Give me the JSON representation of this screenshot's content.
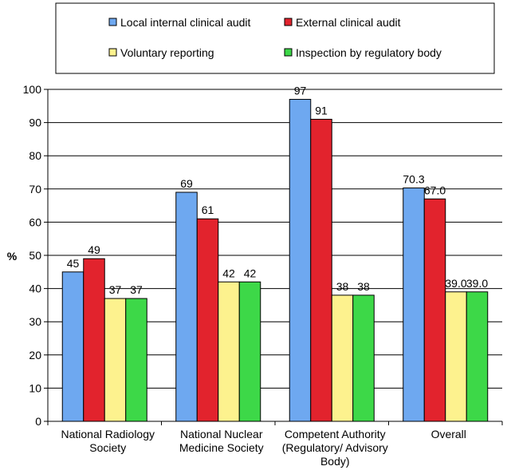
{
  "chart_data": {
    "type": "bar",
    "title": "",
    "xlabel": "",
    "ylabel": "%",
    "ylim": [
      0,
      100
    ],
    "yticks": [
      0,
      10,
      20,
      30,
      40,
      50,
      60,
      70,
      80,
      90,
      100
    ],
    "grid": true,
    "legend_position": "top",
    "categories": [
      [
        "National Radiology",
        "Society"
      ],
      [
        "National Nuclear",
        "Medicine Society"
      ],
      [
        "Competent Authority",
        "(Regulatory/ Advisory",
        "Body)"
      ],
      [
        "Overall"
      ]
    ],
    "series": [
      {
        "name": "Local internal clinical audit",
        "color": "#6ea8f0",
        "values": [
          45,
          69,
          97,
          70.3
        ],
        "labels": [
          "45",
          "69",
          "97",
          "70.3"
        ]
      },
      {
        "name": "External clinical audit",
        "color": "#e2232d",
        "values": [
          49,
          61,
          91,
          67.0
        ],
        "labels": [
          "49",
          "61",
          "91",
          "67.0"
        ]
      },
      {
        "name": "Voluntary reporting",
        "color": "#fdf28e",
        "values": [
          37,
          42,
          38,
          39.0
        ],
        "labels": [
          "37",
          "42",
          "38",
          "39.0"
        ]
      },
      {
        "name": "Inspection by regulatory body",
        "color": "#3dd848",
        "values": [
          37,
          42,
          38,
          39.0
        ],
        "labels": [
          "37",
          "42",
          "38",
          "39.0"
        ]
      }
    ]
  }
}
